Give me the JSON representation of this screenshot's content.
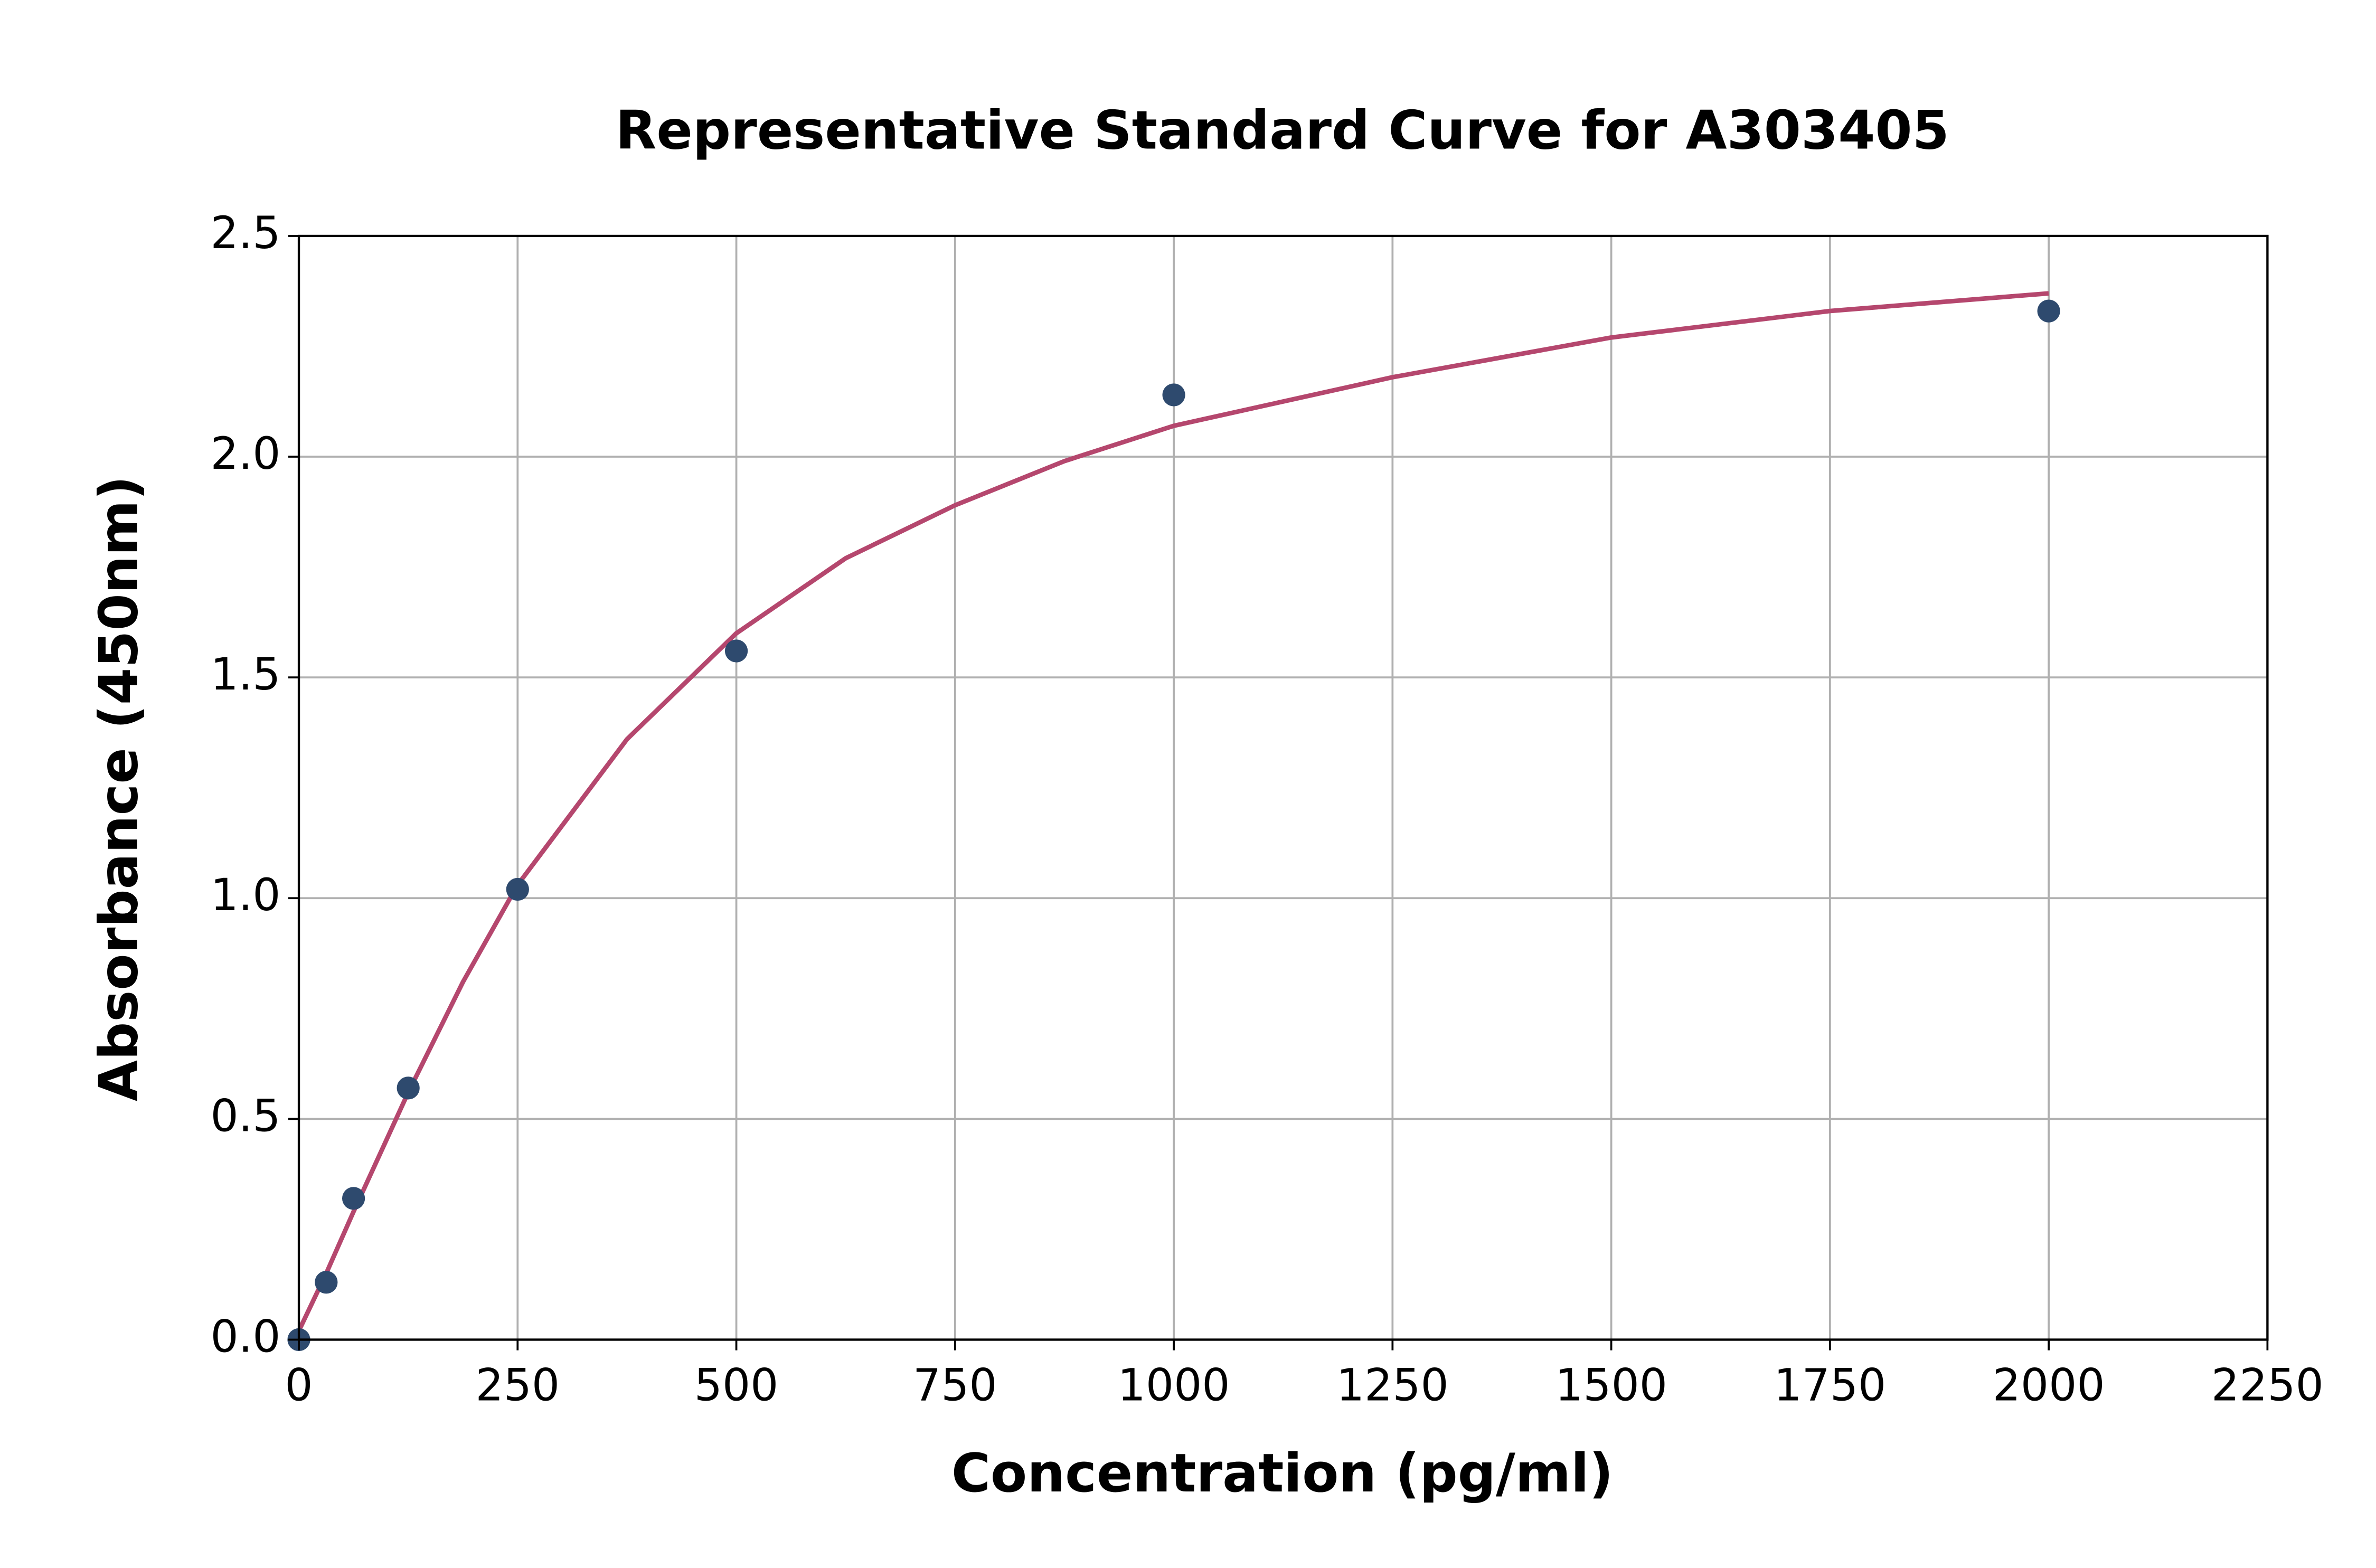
{
  "chart_data": {
    "type": "scatter",
    "title": "Representative Standard Curve for A303405",
    "xlabel": "Concentration (pg/ml)",
    "ylabel": "Absorbance (450nm)",
    "xlim": [
      0,
      2250
    ],
    "ylim": [
      0,
      2.5
    ],
    "xticks": [
      0,
      250,
      500,
      750,
      1000,
      1250,
      1500,
      1750,
      2000,
      2250
    ],
    "yticks": [
      {
        "value": 0,
        "label": "0.0"
      },
      0.5,
      {
        "value": 1,
        "label": "1.0"
      },
      1.5,
      {
        "value": 2,
        "label": "2.0"
      },
      2.5
    ],
    "grid": true,
    "series": [
      {
        "mode": "line",
        "color": "#b5476e",
        "x": [
          0,
          31.25,
          62.5,
          125,
          187.5,
          250,
          375,
          500,
          625,
          750,
          875,
          1000,
          1250,
          1500,
          1750,
          2000
        ],
        "values": [
          0.02,
          0.15,
          0.29,
          0.56,
          0.81,
          1.03,
          1.36,
          1.6,
          1.77,
          1.89,
          1.99,
          2.07,
          2.18,
          2.27,
          2.33,
          2.37
        ]
      },
      {
        "mode": "markers",
        "color": "#2e4a6e",
        "x": [
          0,
          31.25,
          62.5,
          125,
          250,
          500,
          1000,
          2000
        ],
        "values": [
          0.0,
          0.13,
          0.32,
          0.57,
          1.02,
          1.56,
          2.14,
          2.33
        ]
      }
    ]
  }
}
